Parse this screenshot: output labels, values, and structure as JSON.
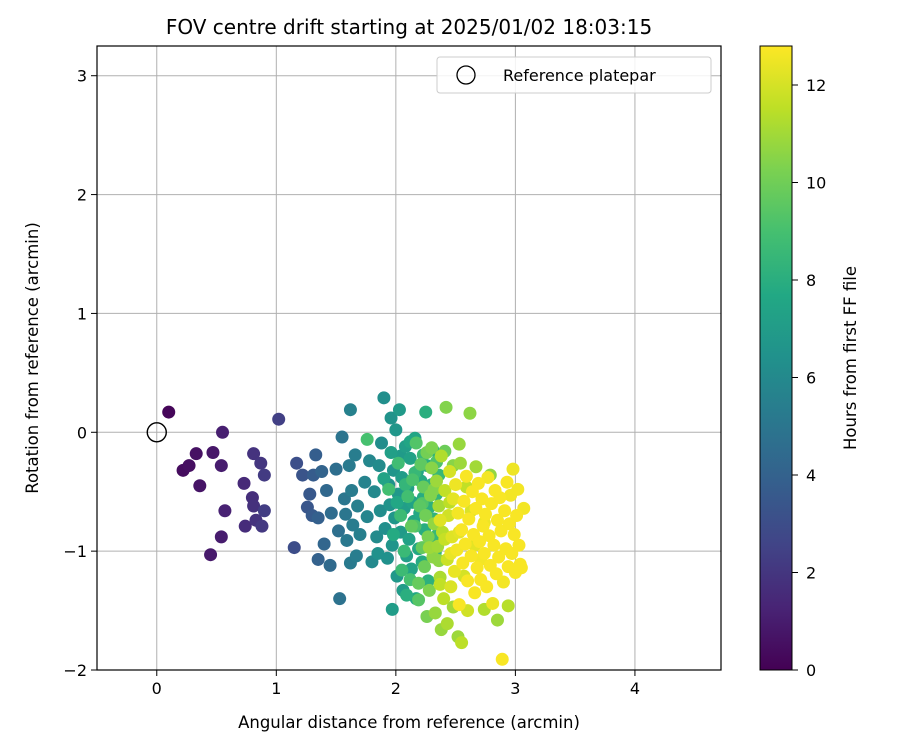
{
  "chart_data": {
    "type": "scatter",
    "title": "FOV centre drift starting at 2025/01/02 18:03:15",
    "xlabel": "Angular distance from reference (arcmin)",
    "ylabel": "Rotation from reference (arcmin)",
    "xlim": [
      -0.5,
      4.72
    ],
    "ylim": [
      -2.0,
      3.25
    ],
    "xticks": [
      0,
      1,
      2,
      3,
      4
    ],
    "yticks": [
      -2,
      -1,
      0,
      1,
      2,
      3
    ],
    "grid": true,
    "legend": {
      "placement": "top-right",
      "entries": [
        "Reference platepar"
      ]
    },
    "reference_point": {
      "x": 0,
      "y": 0
    },
    "colorbar": {
      "label": "Hours from first FF file",
      "range": [
        0,
        12.8
      ],
      "ticks": [
        0,
        2,
        4,
        6,
        8,
        10,
        12
      ],
      "colormap": "viridis"
    },
    "points": [
      {
        "x": 0.1,
        "y": 0.17,
        "t": 0.2
      },
      {
        "x": 0.22,
        "y": -0.32,
        "t": 0.4
      },
      {
        "x": 0.27,
        "y": -0.28,
        "t": 0.5
      },
      {
        "x": 0.33,
        "y": -0.18,
        "t": 0.6
      },
      {
        "x": 0.36,
        "y": -0.45,
        "t": 0.7
      },
      {
        "x": 0.47,
        "y": -0.17,
        "t": 0.8
      },
      {
        "x": 0.45,
        "y": -1.03,
        "t": 0.9
      },
      {
        "x": 0.54,
        "y": -0.88,
        "t": 1.0
      },
      {
        "x": 0.54,
        "y": -0.28,
        "t": 1.0
      },
      {
        "x": 0.55,
        "y": 0.0,
        "t": 1.1
      },
      {
        "x": 0.57,
        "y": -0.66,
        "t": 1.2
      },
      {
        "x": 0.73,
        "y": -0.43,
        "t": 1.5
      },
      {
        "x": 0.74,
        "y": -0.79,
        "t": 1.6
      },
      {
        "x": 0.8,
        "y": -0.55,
        "t": 1.7
      },
      {
        "x": 0.81,
        "y": -0.62,
        "t": 1.8
      },
      {
        "x": 0.83,
        "y": -0.74,
        "t": 1.9
      },
      {
        "x": 0.81,
        "y": -0.18,
        "t": 1.9
      },
      {
        "x": 0.87,
        "y": -0.26,
        "t": 2.0
      },
      {
        "x": 0.88,
        "y": -0.79,
        "t": 2.1
      },
      {
        "x": 0.9,
        "y": -0.36,
        "t": 2.2
      },
      {
        "x": 0.9,
        "y": -0.66,
        "t": 2.3
      },
      {
        "x": 1.02,
        "y": 0.11,
        "t": 2.4
      },
      {
        "x": 1.15,
        "y": -0.97,
        "t": 3.0
      },
      {
        "x": 1.17,
        "y": -0.26,
        "t": 3.1
      },
      {
        "x": 1.22,
        "y": -0.36,
        "t": 3.3
      },
      {
        "x": 1.26,
        "y": -0.63,
        "t": 3.4
      },
      {
        "x": 1.28,
        "y": -0.52,
        "t": 3.5
      },
      {
        "x": 1.3,
        "y": -0.7,
        "t": 3.6
      },
      {
        "x": 1.31,
        "y": -0.36,
        "t": 3.7
      },
      {
        "x": 1.33,
        "y": -0.19,
        "t": 3.8
      },
      {
        "x": 1.35,
        "y": -0.72,
        "t": 3.9
      },
      {
        "x": 1.35,
        "y": -1.07,
        "t": 4.0
      },
      {
        "x": 1.38,
        "y": -0.33,
        "t": 4.1
      },
      {
        "x": 1.4,
        "y": -0.94,
        "t": 4.2
      },
      {
        "x": 1.42,
        "y": -0.49,
        "t": 4.3
      },
      {
        "x": 1.45,
        "y": -1.12,
        "t": 4.4
      },
      {
        "x": 1.46,
        "y": -0.68,
        "t": 4.5
      },
      {
        "x": 1.5,
        "y": -0.31,
        "t": 4.6
      },
      {
        "x": 1.52,
        "y": -0.83,
        "t": 4.7
      },
      {
        "x": 1.53,
        "y": -1.4,
        "t": 4.8
      },
      {
        "x": 1.55,
        "y": -0.04,
        "t": 4.9
      },
      {
        "x": 1.57,
        "y": -0.56,
        "t": 5.0
      },
      {
        "x": 1.58,
        "y": -0.69,
        "t": 5.0
      },
      {
        "x": 1.59,
        "y": -0.91,
        "t": 5.1
      },
      {
        "x": 1.61,
        "y": -0.28,
        "t": 5.2
      },
      {
        "x": 1.62,
        "y": -1.1,
        "t": 5.2
      },
      {
        "x": 1.63,
        "y": -0.49,
        "t": 5.3
      },
      {
        "x": 1.64,
        "y": -0.78,
        "t": 5.3
      },
      {
        "x": 1.66,
        "y": -0.19,
        "t": 5.4
      },
      {
        "x": 1.67,
        "y": -1.04,
        "t": 5.4
      },
      {
        "x": 1.68,
        "y": -0.62,
        "t": 5.5
      },
      {
        "x": 1.7,
        "y": -0.86,
        "t": 5.5
      },
      {
        "x": 1.62,
        "y": 0.19,
        "t": 5.6
      },
      {
        "x": 1.74,
        "y": -0.42,
        "t": 5.7
      },
      {
        "x": 1.76,
        "y": -0.71,
        "t": 5.8
      },
      {
        "x": 1.78,
        "y": -0.24,
        "t": 5.9
      },
      {
        "x": 1.8,
        "y": -1.09,
        "t": 6.0
      },
      {
        "x": 1.82,
        "y": -0.5,
        "t": 6.0
      },
      {
        "x": 1.84,
        "y": -0.88,
        "t": 6.1
      },
      {
        "x": 1.86,
        "y": -0.28,
        "t": 6.1
      },
      {
        "x": 1.87,
        "y": -0.66,
        "t": 6.2
      },
      {
        "x": 1.88,
        "y": -0.09,
        "t": 6.2
      },
      {
        "x": 1.9,
        "y": 0.29,
        "t": 6.3
      },
      {
        "x": 1.91,
        "y": -0.81,
        "t": 6.3
      },
      {
        "x": 1.93,
        "y": -1.06,
        "t": 6.4
      },
      {
        "x": 1.94,
        "y": -0.44,
        "t": 6.4
      },
      {
        "x": 1.95,
        "y": -0.61,
        "t": 6.5
      },
      {
        "x": 1.96,
        "y": 0.12,
        "t": 6.5
      },
      {
        "x": 1.97,
        "y": -0.95,
        "t": 6.6
      },
      {
        "x": 1.98,
        "y": -0.32,
        "t": 6.6
      },
      {
        "x": 1.99,
        "y": -0.72,
        "t": 6.7
      },
      {
        "x": 2.0,
        "y": 0.02,
        "t": 6.7
      },
      {
        "x": 2.01,
        "y": -1.21,
        "t": 6.8
      },
      {
        "x": 2.02,
        "y": -0.52,
        "t": 6.8
      },
      {
        "x": 2.03,
        "y": 0.19,
        "t": 6.9
      },
      {
        "x": 2.04,
        "y": -0.84,
        "t": 6.9
      },
      {
        "x": 2.05,
        "y": -0.38,
        "t": 7.0
      },
      {
        "x": 2.06,
        "y": -1.33,
        "t": 7.0
      },
      {
        "x": 2.07,
        "y": -0.64,
        "t": 7.1
      },
      {
        "x": 2.08,
        "y": -0.12,
        "t": 7.1
      },
      {
        "x": 2.09,
        "y": -1.04,
        "t": 7.2
      },
      {
        "x": 2.1,
        "y": -0.47,
        "t": 7.2
      },
      {
        "x": 2.11,
        "y": -0.9,
        "t": 7.3
      },
      {
        "x": 2.12,
        "y": -0.22,
        "t": 7.3
      },
      {
        "x": 2.13,
        "y": -1.15,
        "t": 7.4
      },
      {
        "x": 2.14,
        "y": -0.59,
        "t": 7.4
      },
      {
        "x": 2.15,
        "y": -0.75,
        "t": 7.5
      },
      {
        "x": 2.16,
        "y": -0.05,
        "t": 7.5
      },
      {
        "x": 2.17,
        "y": -1.4,
        "t": 7.6
      },
      {
        "x": 2.18,
        "y": -0.33,
        "t": 7.6
      },
      {
        "x": 2.19,
        "y": -0.98,
        "t": 7.7
      },
      {
        "x": 2.2,
        "y": -0.68,
        "t": 7.7
      },
      {
        "x": 2.21,
        "y": -0.41,
        "t": 7.8
      },
      {
        "x": 2.22,
        "y": -1.09,
        "t": 7.8
      },
      {
        "x": 2.23,
        "y": -0.55,
        "t": 7.9
      },
      {
        "x": 2.24,
        "y": -0.82,
        "t": 7.9
      },
      {
        "x": 2.25,
        "y": 0.17,
        "t": 8.0
      },
      {
        "x": 2.26,
        "y": -0.28,
        "t": 8.0
      },
      {
        "x": 2.27,
        "y": -1.25,
        "t": 8.1
      },
      {
        "x": 2.28,
        "y": -0.63,
        "t": 8.1
      },
      {
        "x": 2.29,
        "y": -0.92,
        "t": 8.2
      },
      {
        "x": 2.3,
        "y": -0.44,
        "t": 8.2
      },
      {
        "x": 2.31,
        "y": -0.15,
        "t": 8.3
      },
      {
        "x": 2.32,
        "y": -0.73,
        "t": 8.3
      },
      {
        "x": 2.33,
        "y": -1.01,
        "t": 8.4
      },
      {
        "x": 2.34,
        "y": -0.52,
        "t": 8.4
      },
      {
        "x": 2.35,
        "y": -0.86,
        "t": 8.5
      },
      {
        "x": 2.36,
        "y": -0.36,
        "t": 8.5
      },
      {
        "x": 1.85,
        "y": -1.02,
        "t": 6.4
      },
      {
        "x": 1.97,
        "y": -1.49,
        "t": 7.0
      },
      {
        "x": 2.04,
        "y": -0.2,
        "t": 6.9
      },
      {
        "x": 1.76,
        "y": -0.06,
        "t": 9.0
      },
      {
        "x": 1.94,
        "y": -0.48,
        "t": 8.9
      },
      {
        "x": 2.02,
        "y": -0.26,
        "t": 8.8
      },
      {
        "x": 2.04,
        "y": -0.7,
        "t": 8.7
      },
      {
        "x": 2.07,
        "y": -1.0,
        "t": 8.6
      },
      {
        "x": 2.1,
        "y": -0.54,
        "t": 8.9
      },
      {
        "x": 2.12,
        "y": -1.24,
        "t": 9.0
      },
      {
        "x": 2.14,
        "y": -0.4,
        "t": 9.1
      },
      {
        "x": 2.16,
        "y": -0.79,
        "t": 9.2
      },
      {
        "x": 2.17,
        "y": -0.09,
        "t": 9.3
      },
      {
        "x": 2.19,
        "y": -1.41,
        "t": 9.4
      },
      {
        "x": 2.2,
        "y": -0.62,
        "t": 9.5
      },
      {
        "x": 2.21,
        "y": -0.27,
        "t": 9.6
      },
      {
        "x": 2.22,
        "y": -0.97,
        "t": 9.7
      },
      {
        "x": 2.23,
        "y": -0.46,
        "t": 9.8
      },
      {
        "x": 2.24,
        "y": -1.13,
        "t": 9.9
      },
      {
        "x": 2.25,
        "y": -0.7,
        "t": 10.0
      },
      {
        "x": 2.26,
        "y": -0.17,
        "t": 10.1
      },
      {
        "x": 2.27,
        "y": -0.88,
        "t": 10.2
      },
      {
        "x": 2.28,
        "y": -1.33,
        "t": 10.3
      },
      {
        "x": 2.29,
        "y": -0.53,
        "t": 10.4
      },
      {
        "x": 2.3,
        "y": -0.3,
        "t": 10.5
      },
      {
        "x": 2.31,
        "y": -1.05,
        "t": 10.6
      },
      {
        "x": 2.32,
        "y": -0.77,
        "t": 10.7
      },
      {
        "x": 2.33,
        "y": -1.52,
        "t": 10.8
      },
      {
        "x": 2.34,
        "y": -0.41,
        "t": 10.9
      },
      {
        "x": 2.35,
        "y": -0.96,
        "t": 11.0
      },
      {
        "x": 2.36,
        "y": -0.62,
        "t": 11.1
      },
      {
        "x": 2.37,
        "y": -1.22,
        "t": 11.2
      },
      {
        "x": 2.38,
        "y": -0.2,
        "t": 11.3
      },
      {
        "x": 2.39,
        "y": -0.84,
        "t": 11.4
      },
      {
        "x": 2.4,
        "y": -1.4,
        "t": 11.5
      },
      {
        "x": 2.41,
        "y": -0.49,
        "t": 11.6
      },
      {
        "x": 2.42,
        "y": 0.21,
        "t": 10.4
      },
      {
        "x": 2.43,
        "y": -1.07,
        "t": 11.8
      },
      {
        "x": 2.44,
        "y": -0.7,
        "t": 11.9
      },
      {
        "x": 2.45,
        "y": -0.33,
        "t": 12.0
      },
      {
        "x": 2.46,
        "y": -1.3,
        "t": 12.1
      },
      {
        "x": 2.47,
        "y": -0.88,
        "t": 12.2
      },
      {
        "x": 2.48,
        "y": -0.56,
        "t": 12.3
      },
      {
        "x": 2.49,
        "y": -1.17,
        "t": 12.4
      },
      {
        "x": 2.5,
        "y": -0.44,
        "t": 12.5
      },
      {
        "x": 2.51,
        "y": -0.99,
        "t": 12.6
      },
      {
        "x": 2.52,
        "y": -0.68,
        "t": 12.6
      },
      {
        "x": 2.53,
        "y": -1.45,
        "t": 12.7
      },
      {
        "x": 2.54,
        "y": -0.26,
        "t": 10.9
      },
      {
        "x": 2.55,
        "y": -0.82,
        "t": 12.7
      },
      {
        "x": 2.56,
        "y": -1.1,
        "t": 12.7
      },
      {
        "x": 2.57,
        "y": -0.58,
        "t": 12.7
      },
      {
        "x": 2.58,
        "y": -0.94,
        "t": 12.7
      },
      {
        "x": 2.59,
        "y": -0.37,
        "t": 12.7
      },
      {
        "x": 2.6,
        "y": -1.25,
        "t": 12.7
      },
      {
        "x": 2.61,
        "y": -0.73,
        "t": 12.7
      },
      {
        "x": 2.62,
        "y": 0.16,
        "t": 10.6
      },
      {
        "x": 2.63,
        "y": -1.04,
        "t": 12.7
      },
      {
        "x": 2.64,
        "y": -0.5,
        "t": 12.7
      },
      {
        "x": 2.65,
        "y": -0.86,
        "t": 12.7
      },
      {
        "x": 2.66,
        "y": -1.35,
        "t": 12.7
      },
      {
        "x": 2.67,
        "y": -0.64,
        "t": 12.7
      },
      {
        "x": 2.68,
        "y": -1.14,
        "t": 12.7
      },
      {
        "x": 2.69,
        "y": -0.43,
        "t": 12.7
      },
      {
        "x": 2.7,
        "y": -0.92,
        "t": 12.7
      },
      {
        "x": 2.71,
        "y": -1.24,
        "t": 12.7
      },
      {
        "x": 2.72,
        "y": -0.56,
        "t": 12.7
      },
      {
        "x": 2.73,
        "y": -0.79,
        "t": 12.7
      },
      {
        "x": 2.74,
        "y": -1.02,
        "t": 12.7
      },
      {
        "x": 2.75,
        "y": -0.69,
        "t": 12.7
      },
      {
        "x": 2.76,
        "y": -1.3,
        "t": 12.7
      },
      {
        "x": 2.77,
        "y": -0.38,
        "t": 12.6
      },
      {
        "x": 2.78,
        "y": -0.87,
        "t": 12.7
      },
      {
        "x": 2.79,
        "y": -1.12,
        "t": 12.7
      },
      {
        "x": 2.8,
        "y": -0.6,
        "t": 12.7
      },
      {
        "x": 2.81,
        "y": -1.44,
        "t": 12.5
      },
      {
        "x": 2.82,
        "y": -0.95,
        "t": 12.7
      },
      {
        "x": 2.83,
        "y": -0.49,
        "t": 12.7
      },
      {
        "x": 2.84,
        "y": -1.19,
        "t": 12.7
      },
      {
        "x": 2.85,
        "y": -0.74,
        "t": 12.7
      },
      {
        "x": 2.86,
        "y": -1.05,
        "t": 12.7
      },
      {
        "x": 2.87,
        "y": -0.55,
        "t": 12.7
      },
      {
        "x": 2.88,
        "y": -0.83,
        "t": 12.7
      },
      {
        "x": 2.89,
        "y": -1.91,
        "t": 12.7
      },
      {
        "x": 2.9,
        "y": -1.26,
        "t": 12.6
      },
      {
        "x": 2.91,
        "y": -0.66,
        "t": 12.7
      },
      {
        "x": 2.92,
        "y": -0.98,
        "t": 12.7
      },
      {
        "x": 2.93,
        "y": -0.42,
        "t": 12.7
      },
      {
        "x": 2.94,
        "y": -1.13,
        "t": 12.7
      },
      {
        "x": 2.95,
        "y": -0.77,
        "t": 12.7
      },
      {
        "x": 2.96,
        "y": -0.53,
        "t": 12.6
      },
      {
        "x": 2.97,
        "y": -1.02,
        "t": 12.7
      },
      {
        "x": 2.98,
        "y": -0.31,
        "t": 12.5
      },
      {
        "x": 2.99,
        "y": -0.86,
        "t": 12.7
      },
      {
        "x": 3.0,
        "y": -1.18,
        "t": 12.7
      },
      {
        "x": 3.01,
        "y": -0.7,
        "t": 12.7
      },
      {
        "x": 3.02,
        "y": -0.48,
        "t": 12.6
      },
      {
        "x": 3.03,
        "y": -0.95,
        "t": 12.7
      },
      {
        "x": 3.04,
        "y": -1.11,
        "t": 12.7
      },
      {
        "x": 3.07,
        "y": -0.64,
        "t": 12.6
      },
      {
        "x": 3.05,
        "y": -1.14,
        "t": 12.7
      },
      {
        "x": 2.48,
        "y": -1.47,
        "t": 11.0
      },
      {
        "x": 2.52,
        "y": -1.72,
        "t": 10.9
      },
      {
        "x": 2.55,
        "y": -1.77,
        "t": 11.5
      },
      {
        "x": 2.43,
        "y": -1.61,
        "t": 11.2
      },
      {
        "x": 2.38,
        "y": -1.66,
        "t": 10.8
      },
      {
        "x": 2.36,
        "y": -1.08,
        "t": 10.6
      },
      {
        "x": 2.3,
        "y": -0.13,
        "t": 10.3
      },
      {
        "x": 2.48,
        "y": -0.28,
        "t": 10.5
      },
      {
        "x": 2.53,
        "y": -0.1,
        "t": 10.8
      },
      {
        "x": 2.59,
        "y": -0.46,
        "t": 11.6
      },
      {
        "x": 2.74,
        "y": -1.49,
        "t": 11.3
      },
      {
        "x": 2.85,
        "y": -1.58,
        "t": 10.9
      },
      {
        "x": 2.94,
        "y": -1.46,
        "t": 11.4
      },
      {
        "x": 2.79,
        "y": -0.36,
        "t": 10.7
      },
      {
        "x": 2.67,
        "y": -0.29,
        "t": 11.0
      },
      {
        "x": 2.41,
        "y": -0.9,
        "t": 11.7
      },
      {
        "x": 2.6,
        "y": -1.5,
        "t": 11.9
      },
      {
        "x": 2.26,
        "y": -1.55,
        "t": 10.2
      },
      {
        "x": 2.19,
        "y": -1.27,
        "t": 9.8
      },
      {
        "x": 2.13,
        "y": -0.79,
        "t": 9.7
      },
      {
        "x": 2.28,
        "y": -0.97,
        "t": 10.9
      },
      {
        "x": 2.37,
        "y": -0.74,
        "t": 12.2
      },
      {
        "x": 2.46,
        "y": -1.02,
        "t": 12.4
      },
      {
        "x": 2.57,
        "y": -1.21,
        "t": 12.0
      },
      {
        "x": 2.66,
        "y": -0.95,
        "t": 12.3
      },
      {
        "x": 2.74,
        "y": -0.76,
        "t": 12.5
      },
      {
        "x": 2.71,
        "y": -1.07,
        "t": 12.6
      },
      {
        "x": 2.63,
        "y": -0.66,
        "t": 12.1
      },
      {
        "x": 2.53,
        "y": -0.84,
        "t": 12.3
      },
      {
        "x": 2.45,
        "y": -0.59,
        "t": 11.5
      },
      {
        "x": 2.37,
        "y": -1.28,
        "t": 11.6
      },
      {
        "x": 2.32,
        "y": -0.48,
        "t": 10.4
      },
      {
        "x": 2.22,
        "y": -0.6,
        "t": 9.3
      },
      {
        "x": 2.08,
        "y": -0.44,
        "t": 8.4
      },
      {
        "x": 2.05,
        "y": -1.16,
        "t": 8.7
      },
      {
        "x": 1.98,
        "y": -0.86,
        "t": 7.8
      },
      {
        "x": 2.09,
        "y": -1.37,
        "t": 8.0
      },
      {
        "x": 2.16,
        "y": -0.34,
        "t": 8.5
      },
      {
        "x": 2.01,
        "y": -0.59,
        "t": 7.6
      },
      {
        "x": 1.9,
        "y": -0.39,
        "t": 7.4
      },
      {
        "x": 1.96,
        "y": -0.17,
        "t": 7.2
      },
      {
        "x": 2.12,
        "y": -0.08,
        "t": 7.5
      },
      {
        "x": 2.23,
        "y": -0.19,
        "t": 8.6
      },
      {
        "x": 2.34,
        "y": -0.25,
        "t": 9.2
      },
      {
        "x": 2.41,
        "y": -0.16,
        "t": 9.9
      }
    ]
  }
}
